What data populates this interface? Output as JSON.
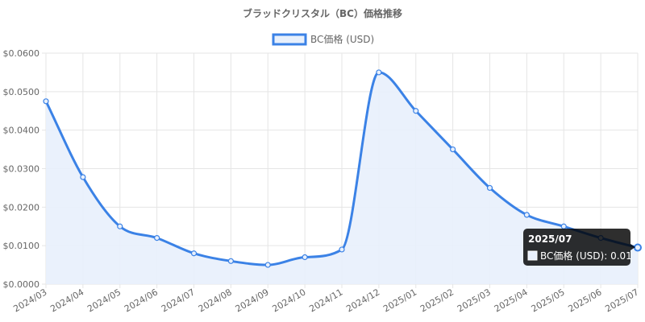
{
  "chart_data": {
    "type": "line",
    "title": "ブラッドクリスタル（BC）価格推移",
    "xlabel": "",
    "ylabel": "",
    "x": [
      "2024/03",
      "2024/04",
      "2024/05",
      "2024/06",
      "2024/07",
      "2024/08",
      "2024/09",
      "2024/10",
      "2024/11",
      "2024/12",
      "2025/01",
      "2025/02",
      "2025/03",
      "2025/04",
      "2025/05",
      "2025/06",
      "2025/07"
    ],
    "series": [
      {
        "name": "BC価格 (USD)",
        "values": [
          0.0475,
          0.0278,
          0.015,
          0.012,
          0.008,
          0.006,
          0.005,
          0.007,
          0.009,
          0.055,
          0.045,
          0.035,
          0.025,
          0.018,
          0.015,
          0.012,
          0.0095
        ]
      }
    ],
    "ylim": [
      0,
      0.06
    ],
    "yticks": [
      "$0.0000",
      "$0.0100",
      "$0.0200",
      "$0.0300",
      "$0.0400",
      "$0.0500",
      "$0.0600"
    ],
    "grid": true,
    "legend_position": "top",
    "colors": {
      "line": "#3b82e6",
      "fill": "#e8f0fc",
      "grid": "#e5e5e5"
    },
    "tooltip": {
      "title": "2025/07",
      "label": "BC価格 (USD): 0.01"
    }
  }
}
